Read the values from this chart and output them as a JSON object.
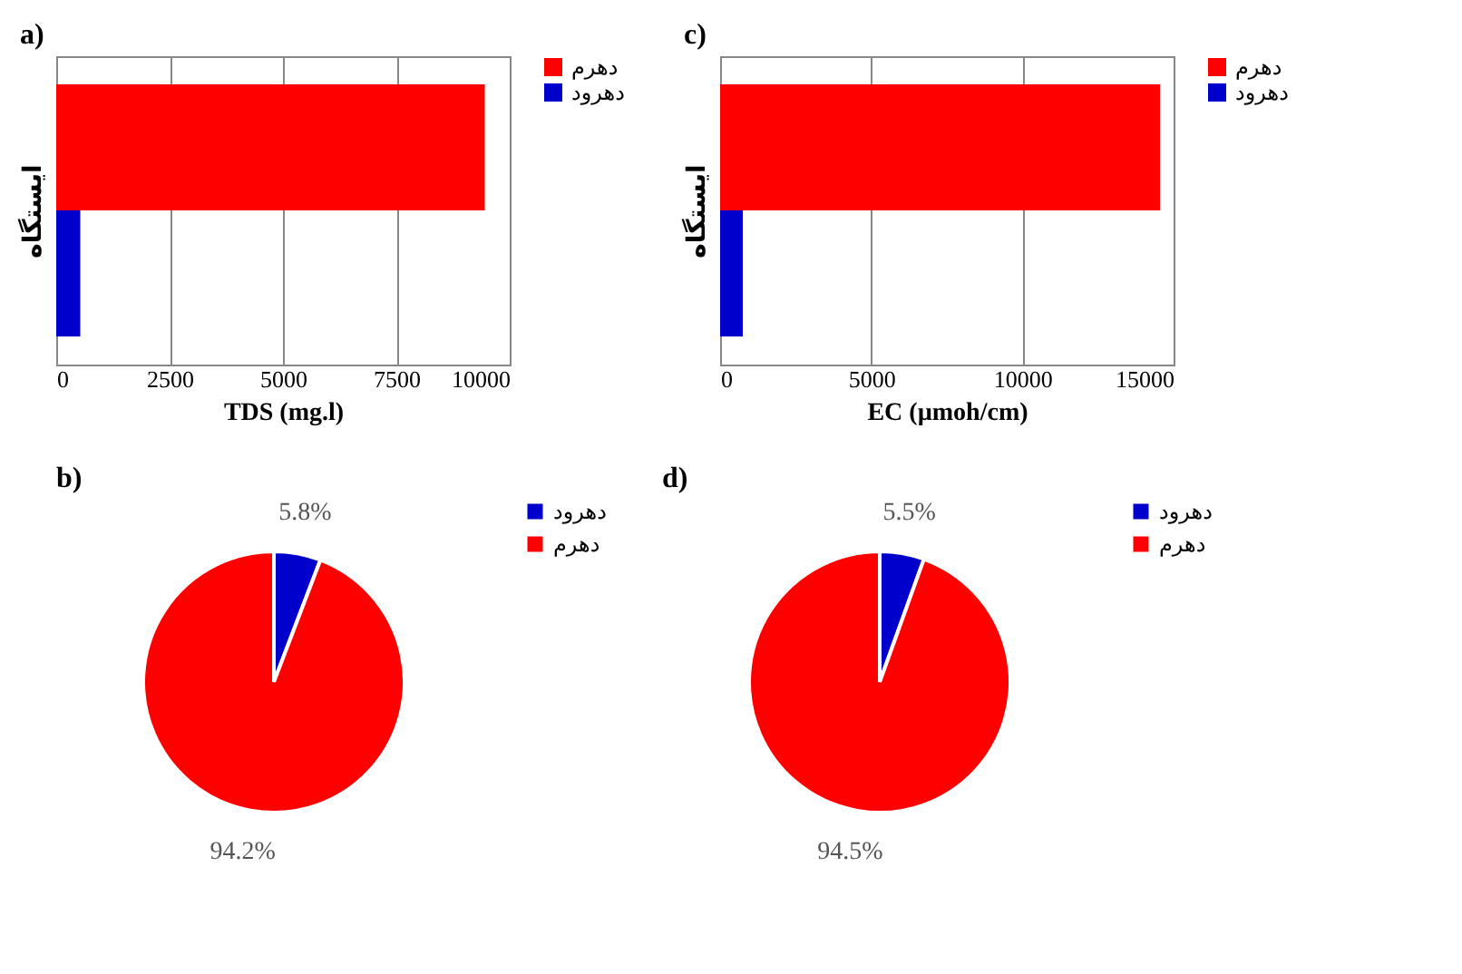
{
  "chart_data": [
    {
      "type": "bar",
      "title": "a)",
      "orientation": "horizontal",
      "categories": [
        null
      ],
      "xlabel": "TDS (mg.l)",
      "ylabel": "ایستگاه",
      "xlim": [
        0,
        10000
      ],
      "xticks": [
        0,
        2500,
        5000,
        7500,
        10000
      ],
      "grid": "x",
      "legend": "right",
      "series": [
        {
          "name": "دهرم",
          "color": "#ff0000",
          "values": [
            9450
          ]
        },
        {
          "name": "دهرود",
          "color": "#0000cc",
          "values": [
            530
          ]
        }
      ]
    },
    {
      "type": "bar",
      "title": "c)",
      "orientation": "horizontal",
      "categories": [
        null
      ],
      "xlabel": "EC (µmoh/cm)",
      "ylabel": "ایستگاه",
      "xlim": [
        0,
        15000
      ],
      "xticks": [
        0,
        5000,
        10000,
        15000
      ],
      "grid": "x",
      "legend": "right",
      "series": [
        {
          "name": "دهرم",
          "color": "#ff0000",
          "values": [
            14550
          ]
        },
        {
          "name": "دهرود",
          "color": "#0000cc",
          "values": [
            750
          ]
        }
      ]
    },
    {
      "type": "pie",
      "title": "b)",
      "categories": [
        "دهرود",
        "دهرم"
      ],
      "values": [
        5.8,
        94.2
      ],
      "colors": [
        "#0000cc",
        "#ff0000"
      ],
      "value_labels": [
        "5.8%",
        "94.2%"
      ],
      "legend": "right"
    },
    {
      "type": "pie",
      "title": "d)",
      "categories": [
        "دهرود",
        "دهرم"
      ],
      "values": [
        5.5,
        94.5
      ],
      "colors": [
        "#0000cc",
        "#ff0000"
      ],
      "value_labels": [
        "5.5%",
        "94.5%"
      ],
      "legend": "right"
    }
  ]
}
